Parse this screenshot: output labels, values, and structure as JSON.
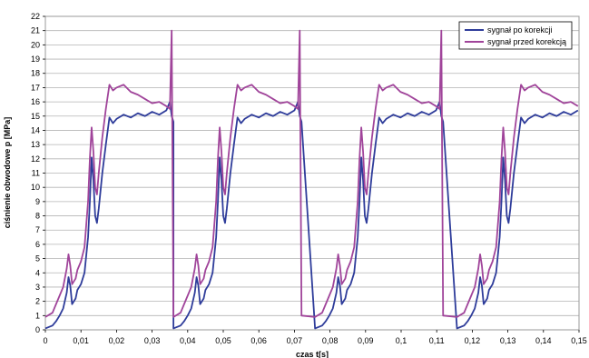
{
  "chart_data": {
    "type": "line",
    "xlabel": "czas t[s]",
    "ylabel": "ciśnienie obwodowe p [MPa]",
    "xlim": [
      0,
      0.15
    ],
    "ylim": [
      0,
      22
    ],
    "x_ticks": [
      0,
      0.01,
      0.02,
      0.03,
      0.04,
      0.05,
      0.06,
      0.07,
      0.08,
      0.09,
      0.1,
      0.11,
      0.12,
      0.13,
      0.14,
      0.15
    ],
    "x_tick_labels": [
      "0",
      "0,01",
      "0,02",
      "0,03",
      "0,04",
      "0,05",
      "0,06",
      "0,07",
      "0,08",
      "0,09",
      "0,1",
      "0,11",
      "0,12",
      "0,13",
      "0,14",
      "0,15"
    ],
    "y_ticks": [
      0,
      1,
      2,
      3,
      4,
      5,
      6,
      7,
      8,
      9,
      10,
      11,
      12,
      13,
      14,
      15,
      16,
      17,
      18,
      19,
      20,
      21,
      22
    ],
    "grid": "horizontal",
    "legend_position": "top-right",
    "cycle_starts": [
      0,
      0.036,
      0.0758,
      0.1157
    ],
    "cycle_length": 0.036,
    "series": [
      {
        "name": "sygnał po korekcji",
        "color": "#2e3c9a",
        "cycle_t": [
          0,
          0.002,
          0.003,
          0.004,
          0.005,
          0.006,
          0.0065,
          0.007,
          0.0075,
          0.0085,
          0.009,
          0.01,
          0.011,
          0.012,
          0.0125,
          0.013,
          0.0135,
          0.014,
          0.0145,
          0.015,
          0.016,
          0.017,
          0.018,
          0.019,
          0.02,
          0.022,
          0.024,
          0.026,
          0.028,
          0.03,
          0.032,
          0.034,
          0.035,
          0.0355,
          0.036
        ],
        "cycle_y": [
          0.1,
          0.3,
          0.6,
          1.0,
          1.5,
          2.6,
          3.7,
          3.1,
          1.8,
          2.2,
          2.8,
          3.2,
          4.0,
          6.5,
          9.0,
          12.1,
          10.5,
          8.0,
          7.5,
          8.5,
          11.0,
          13.0,
          14.9,
          14.5,
          14.8,
          15.1,
          14.9,
          15.2,
          15.0,
          15.3,
          15.1,
          15.4,
          16.0,
          15.0,
          14.6
        ]
      },
      {
        "name": "sygnał przed korekcją",
        "color": "#a0449a",
        "cycle_t": [
          0,
          0.002,
          0.003,
          0.004,
          0.005,
          0.006,
          0.0065,
          0.007,
          0.0075,
          0.0085,
          0.009,
          0.01,
          0.011,
          0.012,
          0.0125,
          0.013,
          0.0135,
          0.014,
          0.0145,
          0.015,
          0.016,
          0.017,
          0.018,
          0.019,
          0.02,
          0.022,
          0.024,
          0.026,
          0.028,
          0.03,
          0.032,
          0.034,
          0.035,
          0.0355,
          0.036
        ],
        "cycle_y": [
          0.9,
          1.2,
          1.8,
          2.4,
          3.0,
          4.3,
          5.3,
          4.5,
          3.2,
          3.6,
          4.2,
          4.8,
          5.8,
          9.0,
          12.0,
          14.2,
          12.5,
          10.0,
          9.5,
          11.0,
          13.5,
          15.5,
          17.2,
          16.8,
          17.0,
          17.2,
          16.7,
          16.5,
          16.2,
          15.9,
          16.0,
          15.7,
          15.5,
          21.0,
          1.0
        ]
      }
    ]
  }
}
